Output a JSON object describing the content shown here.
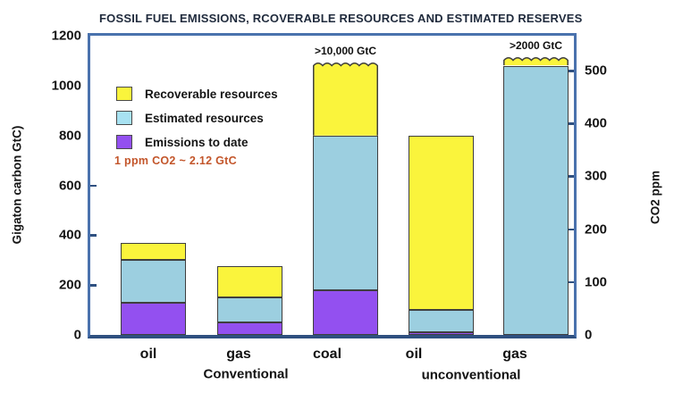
{
  "title": "FOSSIL FUEL EMISSIONS, RCOVERABLE RESOURCES AND ESTIMATED RESERVES",
  "note": "1 ppm CO2 ~ 2.12 GtC",
  "colors": {
    "recoverable": "#FAF43C",
    "estimated": "#9CCFE0",
    "estimated_legend": "#A8E2F2",
    "emissions": "#9350F0",
    "frame": "#4A72AD",
    "axis_line": "#2F5080",
    "segment_border": "#3F3F3F",
    "note_text": "#C3562B",
    "title_text": "#1F2A3C"
  },
  "legend": {
    "items": [
      {
        "label": "Recoverable resources",
        "color_key": "recoverable"
      },
      {
        "label": "Estimated resources",
        "color_key": "estimated_legend"
      },
      {
        "label": "Emissions to date",
        "color_key": "emissions"
      }
    ]
  },
  "left_axis": {
    "label": "Gigaton carbon GtC)",
    "ticks": [
      1200,
      1000,
      800,
      600,
      400,
      200,
      0
    ],
    "max": 1200,
    "tick_marks": [
      600,
      400,
      200
    ]
  },
  "right_axis": {
    "label": "CO2 ppm",
    "ticks": [
      500,
      400,
      300,
      200,
      100,
      0
    ],
    "gtc_per_ppm": 2.12,
    "tick_marks": [
      500,
      400,
      300,
      200,
      100
    ]
  },
  "groups": {
    "labels": [
      "Conventional",
      "unconventional"
    ]
  },
  "chart_data": {
    "type": "bar",
    "stacked": true,
    "title": "FOSSIL FUEL EMISSIONS, RCOVERABLE RESOURCES AND ESTIMATED RESERVES",
    "categories": [
      "oil",
      "gas",
      "coal",
      "oil",
      "gas"
    ],
    "category_groups": [
      "Conventional",
      "Conventional",
      "Conventional",
      "unconventional",
      "unconventional"
    ],
    "ylabel": "Gigaton carbon GtC)",
    "y2label": "CO2 ppm",
    "ylim": [
      0,
      1200
    ],
    "y2lim": [
      0,
      566
    ],
    "unit": "GtC",
    "grid": false,
    "legend_position": "upper-left-inside",
    "series": [
      {
        "name": "Emissions to date",
        "color_key": "emissions",
        "values": [
          130,
          50,
          180,
          10,
          0
        ]
      },
      {
        "name": "Estimated resources",
        "color_key": "estimated",
        "values": [
          170,
          100,
          620,
          90,
          1080
        ]
      },
      {
        "name": "Recoverable resources",
        "color_key": "recoverable",
        "values": [
          70,
          125,
          300,
          700,
          40
        ]
      }
    ],
    "bar_totals_shown": [
      370,
      275,
      1100,
      800,
      1120
    ],
    "truncated_bars": [
      {
        "index": 2,
        "label": ">10,000 GtC"
      },
      {
        "index": 4,
        "label": ">2000 GtC"
      }
    ],
    "note": "1 ppm CO2 ~ 2.12 GtC"
  }
}
